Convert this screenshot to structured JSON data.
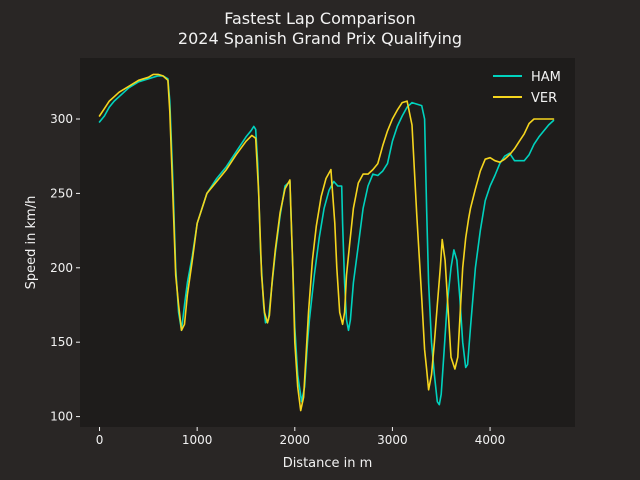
{
  "chart_data": {
    "type": "line",
    "title": "Fastest Lap Comparison",
    "subtitle": "2024 Spanish Grand Prix Qualifying",
    "xlabel": "Distance in m",
    "ylabel": "Speed in km/h",
    "xlim": [
      -200,
      4870
    ],
    "ylim": [
      93,
      341
    ],
    "xticks": [
      0,
      1000,
      2000,
      3000,
      4000
    ],
    "yticks": [
      100,
      150,
      200,
      250,
      300
    ],
    "grid": false,
    "legend_position": "top-right",
    "background": "#1e1c1b",
    "figure_background": "#292625",
    "series": [
      {
        "name": "HAM",
        "color": "#00d2be",
        "x": [
          0,
          50,
          100,
          150,
          200,
          300,
          400,
          500,
          550,
          600,
          650,
          700,
          720,
          750,
          780,
          810,
          840,
          870,
          900,
          950,
          1000,
          1100,
          1200,
          1300,
          1400,
          1500,
          1550,
          1580,
          1600,
          1620,
          1650,
          1680,
          1700,
          1730,
          1760,
          1800,
          1850,
          1900,
          1950,
          2000,
          2030,
          2070,
          2100,
          2130,
          2150,
          2200,
          2250,
          2300,
          2350,
          2400,
          2440,
          2460,
          2480,
          2490,
          2510,
          2530,
          2550,
          2570,
          2600,
          2650,
          2700,
          2750,
          2800,
          2850,
          2900,
          2950,
          3000,
          3050,
          3100,
          3150,
          3200,
          3250,
          3300,
          3330,
          3350,
          3370,
          3400,
          3430,
          3460,
          3480,
          3500,
          3530,
          3560,
          3600,
          3630,
          3660,
          3690,
          3720,
          3750,
          3770,
          3800,
          3850,
          3900,
          3950,
          4000,
          4050,
          4100,
          4150,
          4200,
          4250,
          4300,
          4350,
          4400,
          4450,
          4500,
          4550,
          4600,
          4650
        ],
        "y": [
          298,
          302,
          308,
          312,
          315,
          321,
          325,
          327,
          328,
          329,
          329,
          327,
          312,
          260,
          200,
          170,
          158,
          175,
          190,
          208,
          230,
          250,
          260,
          268,
          278,
          288,
          292,
          295,
          293,
          270,
          210,
          175,
          163,
          165,
          185,
          210,
          235,
          255,
          258,
          160,
          128,
          110,
          120,
          150,
          165,
          195,
          220,
          240,
          252,
          258,
          255,
          255,
          255,
          230,
          190,
          165,
          158,
          165,
          190,
          215,
          240,
          255,
          263,
          262,
          265,
          270,
          285,
          295,
          302,
          308,
          311,
          310,
          309,
          300,
          240,
          190,
          150,
          128,
          110,
          108,
          115,
          145,
          175,
          200,
          212,
          205,
          180,
          150,
          133,
          135,
          160,
          200,
          225,
          245,
          255,
          262,
          270,
          275,
          277,
          272,
          272,
          272,
          276,
          283,
          288,
          292,
          296,
          299
        ]
      },
      {
        "name": "VER",
        "color": "#f5d51e",
        "x": [
          0,
          50,
          100,
          150,
          200,
          300,
          400,
          500,
          550,
          600,
          650,
          700,
          720,
          750,
          780,
          810,
          840,
          870,
          900,
          950,
          1000,
          1100,
          1200,
          1300,
          1400,
          1500,
          1560,
          1600,
          1630,
          1660,
          1690,
          1720,
          1740,
          1770,
          1800,
          1850,
          1900,
          1950,
          1980,
          2000,
          2030,
          2060,
          2090,
          2110,
          2140,
          2180,
          2220,
          2270,
          2320,
          2370,
          2410,
          2430,
          2460,
          2490,
          2510,
          2530,
          2560,
          2600,
          2650,
          2700,
          2750,
          2800,
          2850,
          2900,
          2950,
          3000,
          3050,
          3100,
          3150,
          3200,
          3250,
          3300,
          3330,
          3350,
          3370,
          3400,
          3430,
          3460,
          3490,
          3510,
          3540,
          3570,
          3600,
          3640,
          3670,
          3690,
          3720,
          3750,
          3780,
          3800,
          3850,
          3900,
          3950,
          4000,
          4050,
          4100,
          4150,
          4200,
          4250,
          4300,
          4350,
          4400,
          4450,
          4500,
          4550,
          4600,
          4650
        ],
        "y": [
          302,
          307,
          312,
          315,
          318,
          322,
          326,
          328,
          330,
          330,
          329,
          326,
          305,
          250,
          195,
          175,
          158,
          162,
          182,
          205,
          230,
          250,
          258,
          266,
          276,
          285,
          289,
          287,
          250,
          195,
          170,
          163,
          168,
          192,
          212,
          237,
          253,
          259,
          200,
          150,
          120,
          104,
          113,
          135,
          170,
          205,
          228,
          248,
          260,
          266,
          230,
          200,
          170,
          162,
          170,
          195,
          215,
          240,
          257,
          263,
          263,
          266,
          270,
          282,
          292,
          300,
          306,
          311,
          312,
          296,
          235,
          180,
          145,
          132,
          118,
          128,
          150,
          175,
          200,
          219,
          205,
          172,
          140,
          132,
          140,
          165,
          200,
          220,
          233,
          240,
          253,
          265,
          273,
          274,
          272,
          271,
          273,
          276,
          280,
          285,
          290,
          297,
          300,
          300,
          300,
          300,
          300
        ]
      }
    ]
  }
}
